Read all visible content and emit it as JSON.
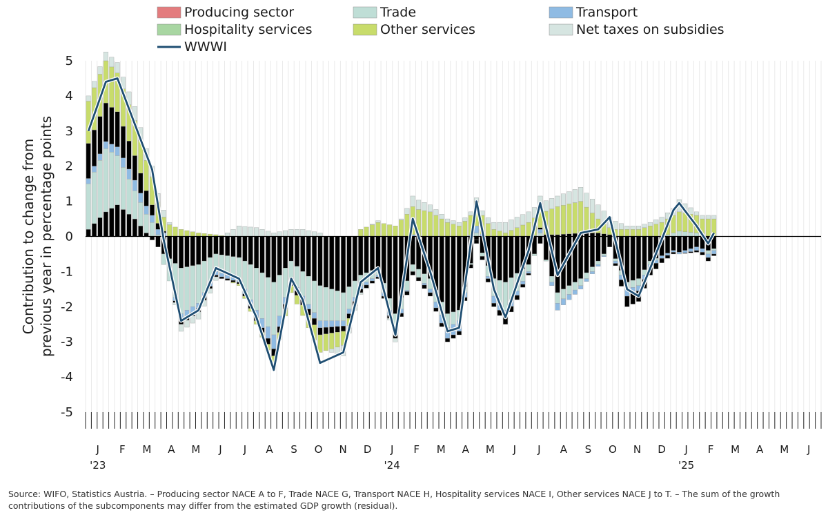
{
  "chart_data": {
    "type": "bar",
    "subtype": "stacked bar with line overlay",
    "ylabel_line1": "Contribution to change from",
    "ylabel_line2": "previous year in percentage points",
    "xlabel": "",
    "ylim": [
      -5,
      5
    ],
    "yticks": [
      5,
      4,
      3,
      2,
      1,
      0,
      -1,
      -2,
      -3,
      -4,
      -5
    ],
    "grid": "vertical lines only",
    "legend_position": "top",
    "colors": {
      "producing": "#e37c7e",
      "trade": "#bfded6",
      "transport": "#8fbbe3",
      "hospitality": "#a8d6a2",
      "other": "#c8dc6b",
      "taxes": "#d6e5e1",
      "line": "#1f4e72"
    },
    "legend": [
      {
        "key": "producing",
        "label": "Producing sector"
      },
      {
        "key": "trade",
        "label": "Trade"
      },
      {
        "key": "transport",
        "label": "Transport"
      },
      {
        "key": "hospitality",
        "label": "Hospitality services"
      },
      {
        "key": "other",
        "label": "Other services"
      },
      {
        "key": "taxes",
        "label": "Net taxes on subsidies"
      },
      {
        "key": "line",
        "label": "WWWI"
      }
    ],
    "months": [
      "J",
      "F",
      "M",
      "A",
      "M",
      "J",
      "J",
      "A",
      "S",
      "O",
      "N",
      "D",
      "J",
      "F",
      "M",
      "A",
      "M",
      "J",
      "J",
      "A",
      "S",
      "O",
      "N",
      "D",
      "J",
      "F",
      "M",
      "A",
      "M",
      "J"
    ],
    "year_labels": [
      {
        "month_index": 0,
        "label": "'23"
      },
      {
        "month_index": 12,
        "label": "'24"
      },
      {
        "month_index": 24,
        "label": "'25"
      }
    ],
    "weeks": 127,
    "anchors": [
      {
        "w": 0,
        "prod": 0.2,
        "trade": 1.3,
        "transport": 0.15,
        "hosp": 1.0,
        "other": 1.2,
        "taxes": 0.15,
        "wwwi": 3.0
      },
      {
        "w": 3,
        "prod": 0.7,
        "trade": 1.8,
        "transport": 0.2,
        "hosp": 1.1,
        "other": 1.2,
        "taxes": 0.25,
        "wwwi": 4.4
      },
      {
        "w": 5,
        "prod": 0.9,
        "trade": 1.4,
        "transport": 0.25,
        "hosp": 1.0,
        "other": 1.1,
        "taxes": 0.3,
        "wwwi": 4.5
      },
      {
        "w": 8,
        "prod": 0.5,
        "trade": 0.8,
        "transport": 0.3,
        "hosp": 0.7,
        "other": 1.0,
        "taxes": 0.4,
        "wwwi": 3.2
      },
      {
        "w": 11,
        "prod": -0.1,
        "trade": 0.4,
        "transport": 0.2,
        "hosp": 0.3,
        "other": 0.8,
        "taxes": 0.3,
        "wwwi": 1.9
      },
      {
        "w": 13,
        "prod": -0.5,
        "trade": -0.3,
        "transport": 0.1,
        "hosp": 0.05,
        "other": 0.4,
        "taxes": 0.2,
        "wwwi": -0.1
      },
      {
        "w": 16,
        "prod": -0.9,
        "trade": -1.3,
        "transport": -0.2,
        "hosp": -0.1,
        "other": 0.2,
        "taxes": -0.2,
        "wwwi": -2.4
      },
      {
        "w": 19,
        "prod": -0.8,
        "trade": -1.1,
        "transport": -0.15,
        "hosp": -0.1,
        "other": 0.1,
        "taxes": -0.2,
        "wwwi": -2.1
      },
      {
        "w": 22,
        "prod": -0.5,
        "trade": -0.5,
        "transport": -0.1,
        "hosp": -0.05,
        "other": 0.05,
        "taxes": -0.1,
        "wwwi": -0.9
      },
      {
        "w": 26,
        "prod": -0.6,
        "trade": -0.6,
        "transport": -0.1,
        "hosp": -0.05,
        "other": -0.05,
        "taxes": 0.3,
        "wwwi": -1.2
      },
      {
        "w": 29,
        "prod": -0.9,
        "trade": -1.2,
        "transport": -0.2,
        "hosp": -0.1,
        "other": -0.1,
        "taxes": 0.25,
        "wwwi": -2.3
      },
      {
        "w": 32,
        "prod": -1.3,
        "trade": -1.5,
        "transport": -0.4,
        "hosp": -0.2,
        "other": -0.2,
        "taxes": 0.1,
        "wwwi": -3.8
      },
      {
        "w": 35,
        "prod": -0.7,
        "trade": -0.5,
        "transport": -0.1,
        "hosp": -0.1,
        "other": -0.2,
        "taxes": 0.2,
        "wwwi": -1.2
      },
      {
        "w": 37,
        "prod": -1.0,
        "trade": -0.7,
        "transport": -0.1,
        "hosp": -0.15,
        "other": -0.3,
        "taxes": 0.2,
        "wwwi": -1.8
      },
      {
        "w": 40,
        "prod": -1.4,
        "trade": -1.0,
        "transport": -0.2,
        "hosp": -0.2,
        "other": -0.5,
        "taxes": 0.1,
        "wwwi": -3.6
      },
      {
        "w": 44,
        "prod": -1.6,
        "trade": -0.8,
        "transport": -0.15,
        "hosp": -0.15,
        "other": -0.4,
        "taxes": -0.3,
        "wwwi": -3.3
      },
      {
        "w": 47,
        "prod": -1.1,
        "trade": -0.3,
        "transport": -0.1,
        "hosp": -0.1,
        "other": 0.2,
        "taxes": -0.05,
        "wwwi": -1.3
      },
      {
        "w": 50,
        "prod": -0.9,
        "trade": -0.2,
        "transport": -0.05,
        "hosp": -0.05,
        "other": 0.4,
        "taxes": 0.05,
        "wwwi": -0.9
      },
      {
        "w": 53,
        "prod": -2.2,
        "trade": -0.4,
        "transport": -0.2,
        "hosp": -0.1,
        "other": 0.3,
        "taxes": -0.1,
        "wwwi": -2.8
      },
      {
        "w": 56,
        "prod": -0.8,
        "trade": -0.2,
        "transport": 0.05,
        "hosp": -0.1,
        "other": 0.8,
        "taxes": 0.3,
        "wwwi": 0.5
      },
      {
        "w": 59,
        "prod": -1.2,
        "trade": -0.3,
        "transport": -0.1,
        "hosp": -0.1,
        "other": 0.7,
        "taxes": 0.2,
        "wwwi": -1.0
      },
      {
        "w": 62,
        "prod": -2.2,
        "trade": -0.4,
        "transport": -0.3,
        "hosp": -0.1,
        "other": 0.4,
        "taxes": 0.1,
        "wwwi": -2.7
      },
      {
        "w": 64,
        "prod": -2.1,
        "trade": -0.3,
        "transport": -0.3,
        "hosp": -0.1,
        "other": 0.3,
        "taxes": 0.1,
        "wwwi": -2.6
      },
      {
        "w": 67,
        "prod": -0.1,
        "trade": 0.1,
        "transport": 0.2,
        "hosp": -0.1,
        "other": 0.7,
        "taxes": 0.1,
        "wwwi": 1.0
      },
      {
        "w": 70,
        "prod": -1.2,
        "trade": -0.5,
        "transport": -0.2,
        "hosp": -0.1,
        "other": 0.2,
        "taxes": 0.2,
        "wwwi": -1.5
      },
      {
        "w": 72,
        "prod": -1.3,
        "trade": -0.8,
        "transport": -0.2,
        "hosp": -0.2,
        "other": 0.1,
        "taxes": 0.3,
        "wwwi": -2.3
      },
      {
        "w": 76,
        "prod": -0.8,
        "trade": -0.2,
        "transport": -0.05,
        "hosp": -0.05,
        "other": 0.4,
        "taxes": 0.3,
        "wwwi": -0.4
      },
      {
        "w": 78,
        "prod": -0.2,
        "trade": 0.1,
        "transport": 0.1,
        "hosp": 0.05,
        "other": 0.6,
        "taxes": 0.3,
        "wwwi": 0.95
      },
      {
        "w": 81,
        "prod": -1.6,
        "trade": -0.3,
        "transport": -0.2,
        "hosp": 0.05,
        "other": 0.8,
        "taxes": 0.3,
        "wwwi": -1.1
      },
      {
        "w": 85,
        "prod": -1.2,
        "trade": -0.2,
        "transport": -0.1,
        "hosp": 0.1,
        "other": 0.9,
        "taxes": 0.4,
        "wwwi": 0.1
      },
      {
        "w": 88,
        "prod": -0.7,
        "trade": -0.1,
        "transport": -0.05,
        "hosp": 0.1,
        "other": 0.4,
        "taxes": 0.4,
        "wwwi": 0.2
      },
      {
        "w": 90,
        "prod": -0.3,
        "trade": 0.0,
        "transport": 0.0,
        "hosp": 0.05,
        "other": 0.2,
        "taxes": 0.3,
        "wwwi": 0.55
      },
      {
        "w": 93,
        "prod": -1.3,
        "trade": -0.2,
        "transport": -0.2,
        "hosp": -0.3,
        "other": 0.2,
        "taxes": 0.1,
        "wwwi": -1.5
      },
      {
        "w": 95,
        "prod": -1.2,
        "trade": -0.2,
        "transport": -0.15,
        "hosp": -0.3,
        "other": 0.2,
        "taxes": 0.1,
        "wwwi": -1.7
      },
      {
        "w": 97,
        "prod": -0.7,
        "trade": -0.1,
        "transport": -0.1,
        "hosp": -0.2,
        "other": 0.3,
        "taxes": 0.1,
        "wwwi": -0.9
      },
      {
        "w": 101,
        "prod": -0.4,
        "trade": 0.1,
        "transport": -0.05,
        "hosp": -0.05,
        "other": 0.5,
        "taxes": 0.2,
        "wwwi": 0.75
      },
      {
        "w": 102,
        "prod": -0.45,
        "trade": 0.15,
        "transport": -0.05,
        "hosp": 0.0,
        "other": 0.55,
        "taxes": 0.35,
        "wwwi": 0.95
      },
      {
        "w": 105,
        "prod": -0.3,
        "trade": 0.1,
        "transport": -0.1,
        "hosp": -0.05,
        "other": 0.5,
        "taxes": 0.1,
        "wwwi": 0.3
      },
      {
        "w": 107,
        "prod": -0.4,
        "trade": -0.1,
        "transport": -0.1,
        "hosp": -0.1,
        "other": 0.5,
        "taxes": 0.1,
        "wwwi": -0.2
      },
      {
        "w": 108,
        "prod": -0.35,
        "trade": -0.05,
        "transport": -0.1,
        "hosp": -0.05,
        "other": 0.5,
        "taxes": 0.1,
        "wwwi": 0.1
      }
    ]
  },
  "source_note": "Source: WIFO, Statistics Austria. – Producing sector NACE A to F, Trade NACE G, Transport NACE H, Hospitality services NACE I, Other services NACE J to T. – The sum of the growth contributions of the subcomponents may differ from the estimated GDP growth (residual)."
}
